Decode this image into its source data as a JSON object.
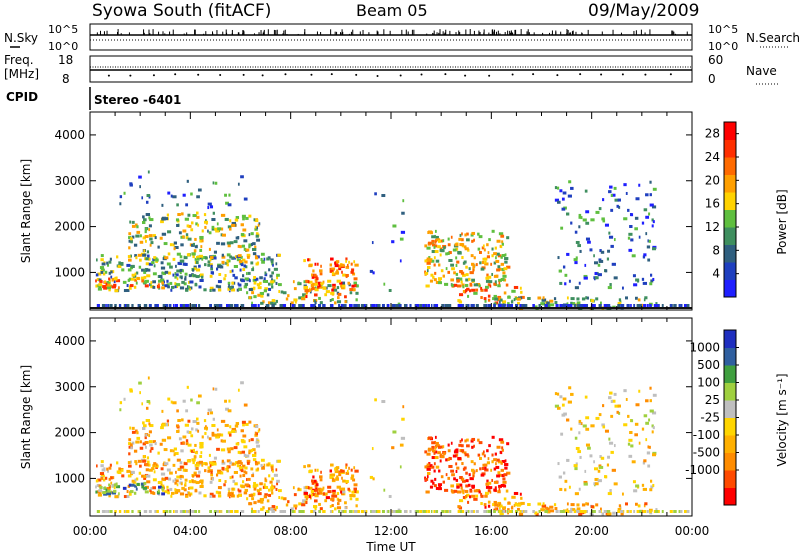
{
  "header": {
    "title": "Syowa South (fitACF)",
    "beam": "Beam 05",
    "date": "09/May/2009"
  },
  "strips": {
    "nsky_label": "N.Sky",
    "nsky_ticks": [
      "10^5",
      "10^0"
    ],
    "nsearch_label": "N.Search",
    "nsearch_ticks": [
      "10^5",
      "10^0"
    ],
    "freq_label_1": "Freq.",
    "freq_label_2": "[MHz]",
    "freq_ticks": [
      "18",
      "8"
    ],
    "nave_label": "Nave",
    "nave_ticks": [
      "60",
      "0"
    ],
    "cpid_label": "CPID",
    "cpid_value": "Stereo  -6401"
  },
  "colors": {
    "power_scale": [
      "#1f1fff",
      "#1f3fbf",
      "#2f5f7f",
      "#3f8f5f",
      "#5fbf3f",
      "#ffd200",
      "#ff9f00",
      "#ff6a00",
      "#ff2f00",
      "#ff0000"
    ],
    "velocity_scale": [
      "#ff0000",
      "#ff4a00",
      "#ff8c00",
      "#ffb000",
      "#ffd500",
      "#bfbfbf",
      "#9fd03f",
      "#3f9f3f",
      "#2f5f9f",
      "#1f2fbf"
    ]
  },
  "chart_data": [
    {
      "type": "heatmap",
      "title": "Power",
      "ylabel": "Slant Range [km]",
      "xlabel": "Time UT",
      "x_ticks": [
        "00:00",
        "04:00",
        "08:00",
        "12:00",
        "16:00",
        "20:00",
        "00:00"
      ],
      "xlim_hours": [
        0,
        24
      ],
      "y_ticks": [
        1000,
        2000,
        3000,
        4000
      ],
      "ylim": [
        180,
        4500
      ],
      "colorbar": {
        "label": "Power [dB]",
        "ticks": [
          4,
          8,
          12,
          16,
          20,
          24,
          28
        ],
        "range": [
          0,
          30
        ]
      }
    },
    {
      "type": "heatmap",
      "title": "Velocity",
      "ylabel": "Slant Range [km]",
      "xlabel": "Time UT",
      "x_ticks": [
        "00:00",
        "04:00",
        "08:00",
        "12:00",
        "16:00",
        "20:00",
        "00:00"
      ],
      "xlim_hours": [
        0,
        24
      ],
      "y_ticks": [
        1000,
        2000,
        3000,
        4000
      ],
      "ylim": [
        180,
        4500
      ],
      "colorbar": {
        "label": "Velocity [m s⁻¹]",
        "ticks": [
          "1000",
          "500",
          "100",
          "25",
          "-25",
          "-100",
          "-500",
          "-1000"
        ]
      }
    }
  ],
  "axes": {
    "time_label": "Time UT",
    "x_ticks": [
      "00:00",
      "04:00",
      "08:00",
      "12:00",
      "16:00",
      "20:00",
      "00:00"
    ],
    "y_ticks": [
      "1000",
      "2000",
      "3000",
      "4000"
    ],
    "ylabel": "Slant Range [km]",
    "power_label": "Power [dB]",
    "power_ticks": [
      "4",
      "8",
      "12",
      "16",
      "20",
      "24",
      "28"
    ],
    "velocity_label": "Velocity [m s⁻¹]",
    "velocity_ticks": [
      "1000",
      "500",
      "100",
      "25",
      "-25",
      "-100",
      "-500",
      "-1000"
    ]
  }
}
